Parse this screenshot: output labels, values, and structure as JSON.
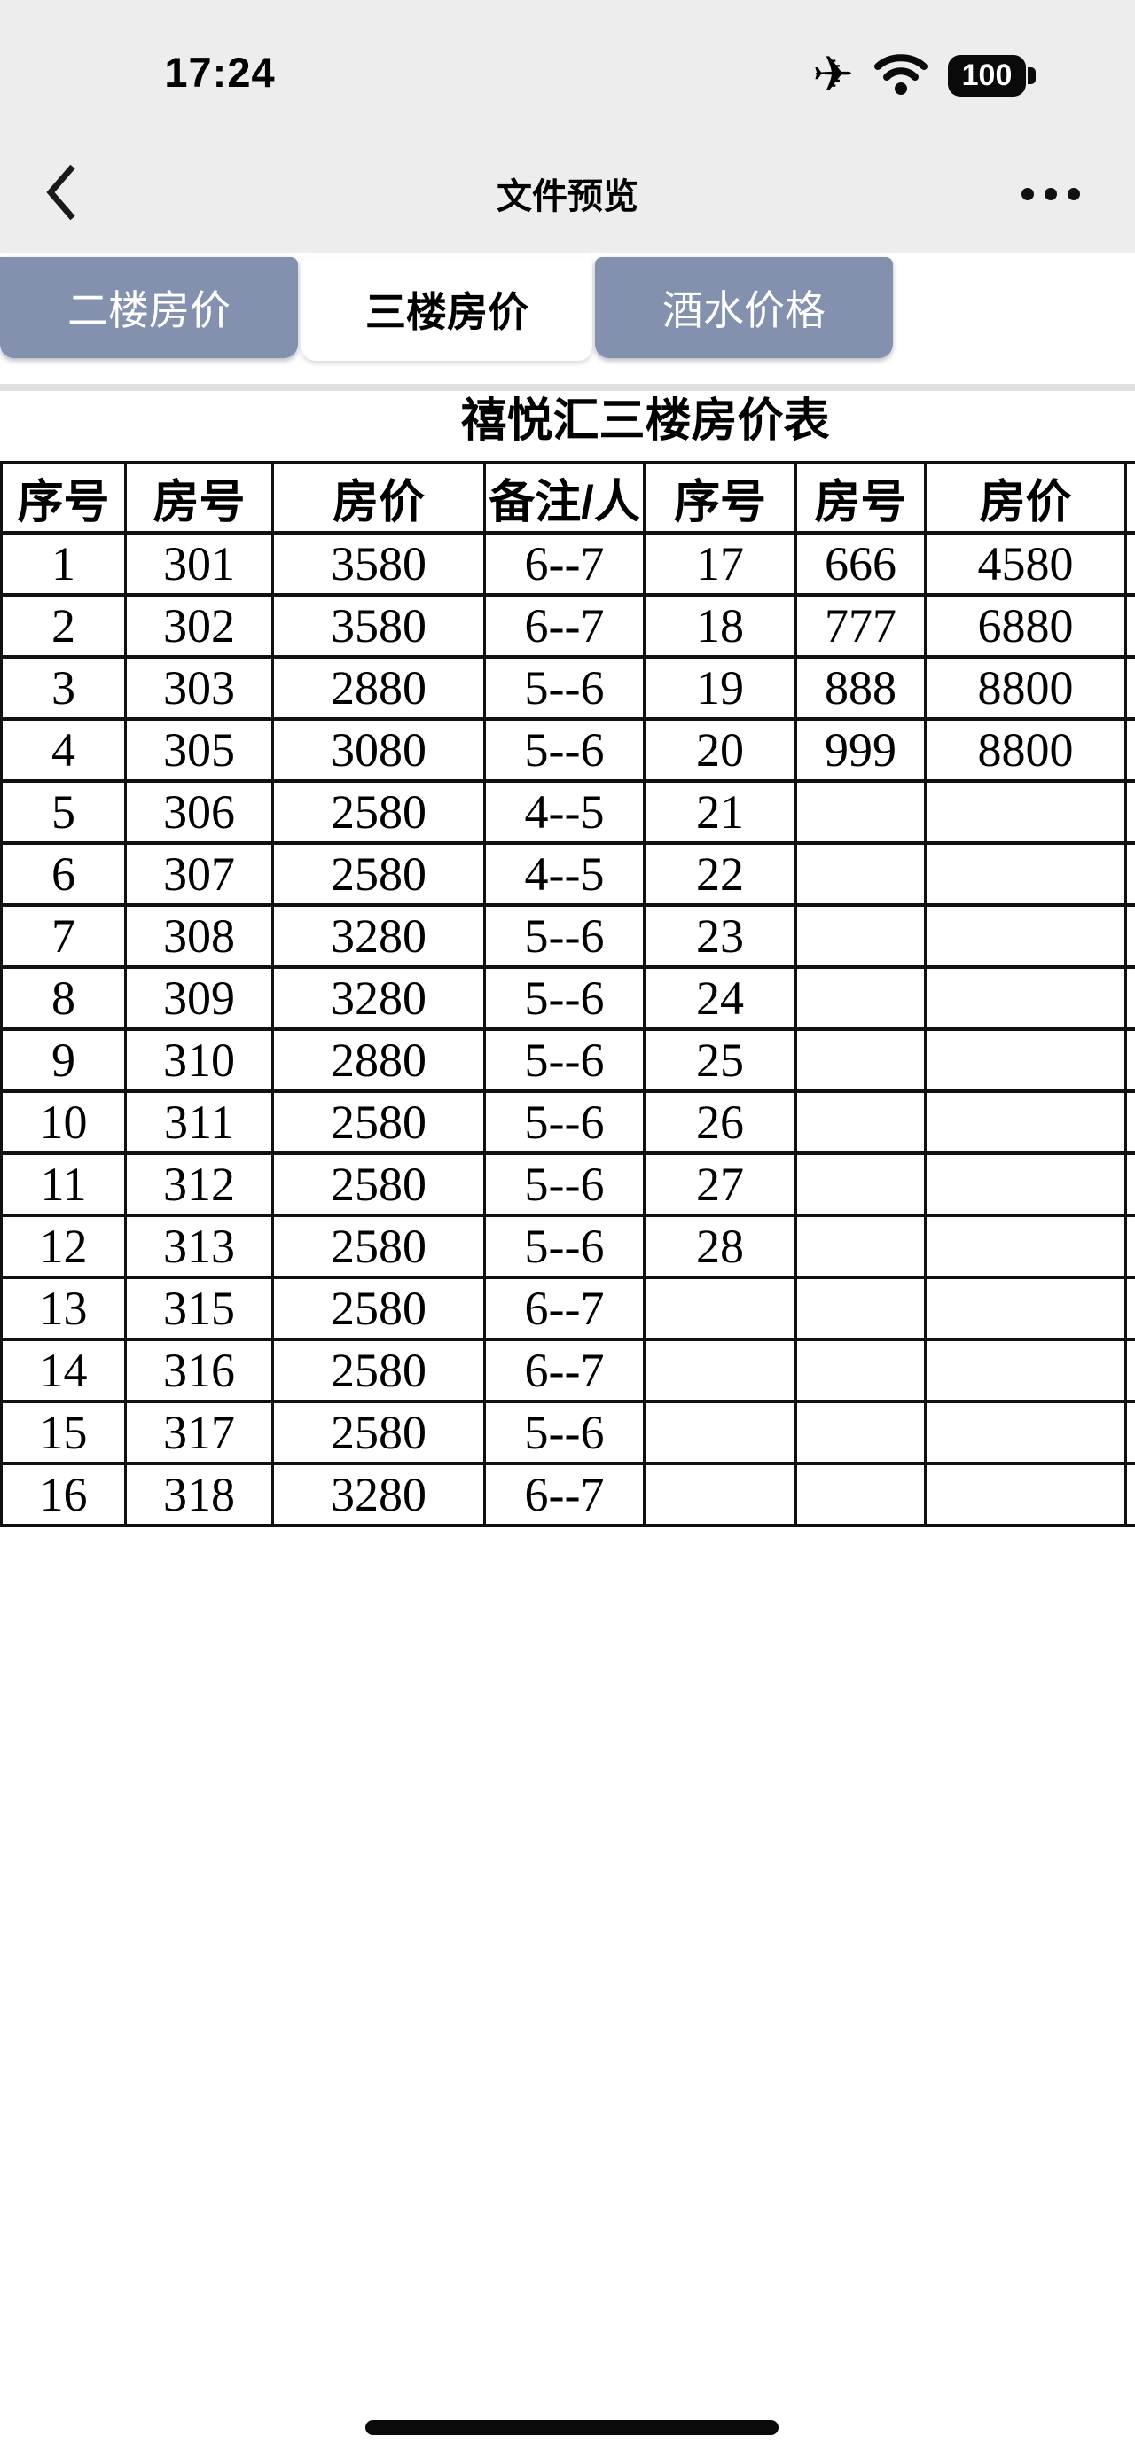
{
  "status_bar": {
    "time": "17:24",
    "battery_level": "100",
    "icons": [
      "airplane-mode-icon",
      "wifi-icon",
      "battery-icon"
    ]
  },
  "nav_bar": {
    "title": "文件预览"
  },
  "tabs": [
    {
      "label": "二楼房价",
      "active": false
    },
    {
      "label": "三楼房价",
      "active": true
    },
    {
      "label": "酒水价格",
      "active": false
    }
  ],
  "document": {
    "title": "禧悦汇三楼房价表",
    "table": {
      "headers": [
        "序号",
        "房号",
        "房价",
        "备注/人",
        "序号",
        "房号",
        "房价"
      ],
      "rows": [
        [
          "1",
          "301",
          "3580",
          "6--7",
          "17",
          "666",
          "4580"
        ],
        [
          "2",
          "302",
          "3580",
          "6--7",
          "18",
          "777",
          "6880"
        ],
        [
          "3",
          "303",
          "2880",
          "5--6",
          "19",
          "888",
          "8800"
        ],
        [
          "4",
          "305",
          "3080",
          "5--6",
          "20",
          "999",
          "8800"
        ],
        [
          "5",
          "306",
          "2580",
          "4--5",
          "21",
          "",
          ""
        ],
        [
          "6",
          "307",
          "2580",
          "4--5",
          "22",
          "",
          ""
        ],
        [
          "7",
          "308",
          "3280",
          "5--6",
          "23",
          "",
          ""
        ],
        [
          "8",
          "309",
          "3280",
          "5--6",
          "24",
          "",
          ""
        ],
        [
          "9",
          "310",
          "2880",
          "5--6",
          "25",
          "",
          ""
        ],
        [
          "10",
          "311",
          "2580",
          "5--6",
          "26",
          "",
          ""
        ],
        [
          "11",
          "312",
          "2580",
          "5--6",
          "27",
          "",
          ""
        ],
        [
          "12",
          "313",
          "2580",
          "5--6",
          "28",
          "",
          ""
        ],
        [
          "13",
          "315",
          "2580",
          "6--7",
          "",
          "",
          ""
        ],
        [
          "14",
          "316",
          "2580",
          "6--7",
          "",
          "",
          ""
        ],
        [
          "15",
          "317",
          "2580",
          "5--6",
          "",
          "",
          ""
        ],
        [
          "16",
          "318",
          "3280",
          "6--7",
          "",
          "",
          ""
        ]
      ]
    }
  },
  "colors": {
    "tab_inactive_bg": "#8391ae",
    "tab_active_bg": "#ffffff",
    "bar_bg": "#ededed",
    "divider": "#e0e0e3",
    "table_border": "#111111"
  }
}
